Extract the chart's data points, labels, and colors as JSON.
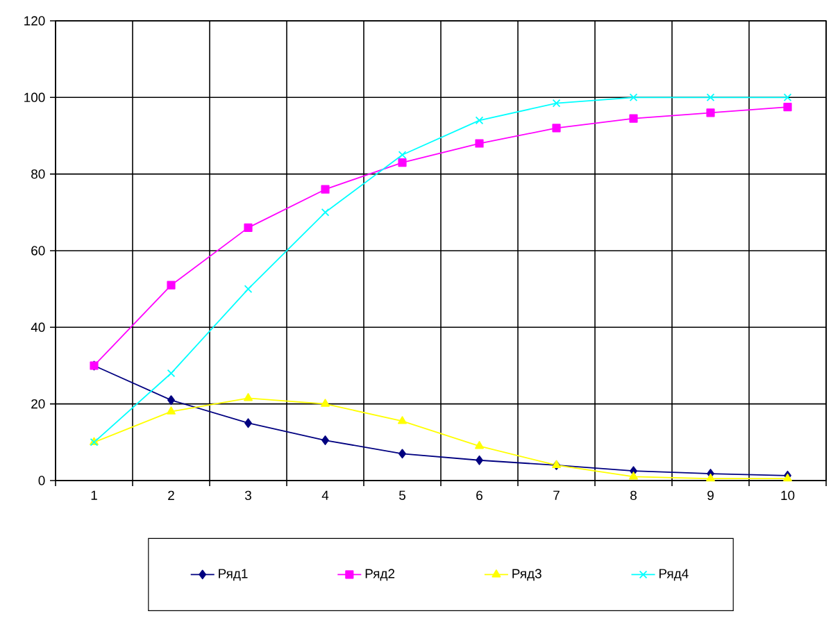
{
  "chart_data": {
    "type": "line",
    "categories": [
      "1",
      "2",
      "3",
      "4",
      "5",
      "6",
      "7",
      "8",
      "9",
      "10"
    ],
    "series": [
      {
        "name": "Ряд1",
        "color": "#000080",
        "marker": "diamond",
        "values": [
          30,
          21,
          15,
          10.5,
          7,
          5.3,
          4,
          2.5,
          1.8,
          1.3
        ]
      },
      {
        "name": "Ряд2",
        "color": "#ff00ff",
        "marker": "square",
        "values": [
          30,
          51,
          66,
          76,
          83,
          88,
          92,
          94.5,
          96,
          97.5
        ]
      },
      {
        "name": "Ряд3",
        "color": "#ffff00",
        "marker": "triangle",
        "values": [
          10,
          18,
          21.5,
          20,
          15.5,
          9,
          4,
          1,
          0.5,
          0.5
        ]
      },
      {
        "name": "Ряд4",
        "color": "#00ffff",
        "marker": "cross",
        "values": [
          10,
          28,
          50,
          70,
          85,
          94,
          98.5,
          100,
          100,
          100
        ]
      }
    ],
    "ylim": [
      0,
      120
    ],
    "yticks": [
      0,
      20,
      40,
      60,
      80,
      100,
      120
    ],
    "grid": true,
    "legend": "bottom",
    "line_style": "solid"
  }
}
